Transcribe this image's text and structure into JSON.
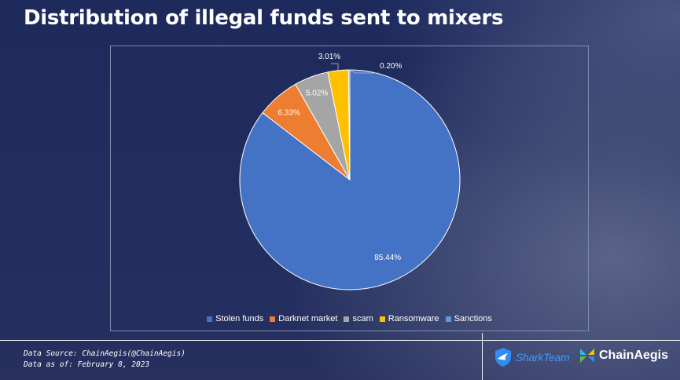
{
  "title": "Distribution of illegal funds sent to mixers",
  "chart_data": {
    "type": "pie",
    "title": "",
    "slices": [
      {
        "label": "Stolen funds",
        "value": 85.44,
        "display": "85.44%",
        "color": "#4472c4"
      },
      {
        "label": "Darknet market",
        "value": 6.33,
        "display": "6.33%",
        "color": "#ed7d31"
      },
      {
        "label": "scam",
        "value": 5.02,
        "display": "5.02%",
        "color": "#a5a5a5"
      },
      {
        "label": "Ransomware",
        "value": 3.01,
        "display": "3.01%",
        "color": "#ffc000"
      },
      {
        "label": "Sanctions",
        "value": 0.2,
        "display": "0.20%",
        "color": "#5b9bd5"
      }
    ],
    "legend_position": "bottom"
  },
  "footer": {
    "source": "Data Source: ChainAegis(@ChainAegis)",
    "date": "Data as of: February 8, 2023"
  },
  "logos": {
    "sharkteam": "SharkTeam",
    "chainaegis": "ChainAegis"
  }
}
